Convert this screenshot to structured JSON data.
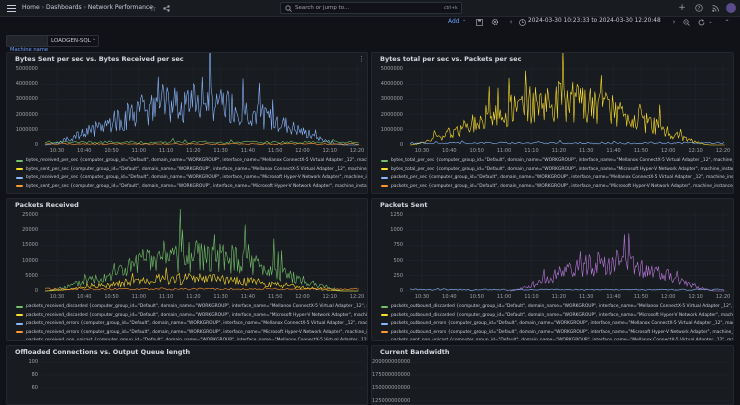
{
  "header": {
    "breadcrumb": [
      "Home",
      "Dashboards",
      "Network Performance"
    ],
    "search_placeholder": "Search or jump to...",
    "search_shortcut": "ctrl+k"
  },
  "toolbar": {
    "add_label": "Add",
    "time_range": "2024-03-30 10:23:33 to 2024-03-30 12:20:48"
  },
  "variables": {
    "label": "Machine name",
    "value": "LOADGEN-SQL"
  },
  "colors": {
    "green": "#73bf69",
    "yellow": "#fade2a",
    "blue": "#8ab8ff",
    "orange": "#ff9830",
    "red": "#f2495c",
    "purple": "#b877d9",
    "background": "#111217",
    "panel": "#181b1f"
  },
  "panels": {
    "p1": {
      "title": "Bytes Sent per sec vs. Bytes Received per sec",
      "yticks": [
        "5000000",
        "4000000",
        "3000000",
        "2000000",
        "1000000",
        "0"
      ],
      "xticks": [
        "10:30",
        "10:40",
        "10:50",
        "11:00",
        "11:10",
        "11:20",
        "11:30",
        "11:40",
        "11:50",
        "12:00",
        "12:10",
        "12:20"
      ],
      "legend": [
        {
          "text": "bytes_received_per_sec {computer_group_id=\"Default\", domain_name=\"WORKGROUP\", interface_name=\"Mellanox ConnectX-5 Virtual Adapter _12\", machine_in",
          "color": "green"
        },
        {
          "text": "bytes_sent_per_sec {computer_group_id=\"Default\", domain_name=\"WORKGROUP\", interface_name=\"Mellanox ConnectX-5 Virtual Adapter _12\", machine_instan",
          "color": "yellow"
        },
        {
          "text": "bytes_received_per_sec {computer_group_id=\"Default\", domain_name=\"WORKGROUP\", interface_name=\"Microsoft Hyper-V Network Adapter\", machine_insta",
          "color": "blue"
        },
        {
          "text": "bytes_sent_per_sec {computer_group_id=\"Default\", domain_name=\"WORKGROUP\", interface_name=\"Microsoft Hyper-V Network Adapter\", machine_instance_",
          "color": "orange"
        }
      ]
    },
    "p2": {
      "title": "Bytes total per sec vs. Packets per sec",
      "yticks": [
        "5000000",
        "4000000",
        "3000000",
        "2000000",
        "1000000",
        "0"
      ],
      "xticks": [
        "10:30",
        "10:40",
        "10:50",
        "11:00",
        "11:10",
        "11:20",
        "11:30",
        "11:40",
        "11:50",
        "12:00",
        "12:10",
        "12:20"
      ],
      "legend": [
        {
          "text": "bytes_total_per_sec {computer_group_id=\"Default\", domain_name=\"WORKGROUP\", interface_name=\"Mellanox ConnectX-5 Virtual Adapter _12\", machine_ins",
          "color": "green"
        },
        {
          "text": "bytes_total_per_sec {computer_group_id=\"Default\", domain_name=\"WORKGROUP\", interface_name=\"Microsoft Hyper-V Network Adapter\", machine_instance",
          "color": "yellow"
        },
        {
          "text": "packets_per_sec {computer_group_id=\"Default\", domain_name=\"WORKGROUP\", interface_name=\"Mellanox ConnectX-5 Virtual Adapter _12\", machine_instanc",
          "color": "blue"
        },
        {
          "text": "packets_per_sec {computer_group_id=\"Default\", domain_name=\"WORKGROUP\", interface_name=\"Microsoft Hyper-V Network Adapter\", machine_instance_",
          "color": "orange"
        }
      ]
    },
    "p3": {
      "title": "Packets Received",
      "yticks": [
        "25000",
        "20000",
        "15000",
        "10000",
        "5000",
        "0"
      ],
      "xticks": [
        "10:30",
        "10:40",
        "10:50",
        "11:00",
        "11:10",
        "11:20",
        "11:30",
        "11:40",
        "11:50",
        "12:00",
        "12:10",
        "12:20"
      ],
      "legend": [
        {
          "text": "packets_received_discarded {computer_group_id=\"Default\", domain_name=\"WORKGROUP\", interface_name=\"Mellanox ConnectX-5 Virtual Adapter _12\", ma",
          "color": "green"
        },
        {
          "text": "packets_received_discarded {computer_group_id=\"Default\", domain_name=\"WORKGROUP\", interface_name=\"Microsoft Hyper-V Network Adapter\", machine_in",
          "color": "yellow"
        },
        {
          "text": "packets_received_errors {computer_group_id=\"Default\", domain_name=\"WORKGROUP\", interface_name=\"Mellanox ConnectX-5 Virtual Adapter _12\", machin",
          "color": "blue"
        },
        {
          "text": "packets_received_errors {computer_group_id=\"Default\", domain_name=\"WORKGROUP\", interface_name=\"Microsoft Hyper-V Network Adapter\", machine_inst",
          "color": "orange"
        },
        {
          "text": "packets_received_non_unicast {computer_group_id=\"Default\", domain_name=\"WORKGROUP\", interface_name=\"Mellanox ConnectX-5 Virtual Adapter _12\", m",
          "color": "red"
        }
      ]
    },
    "p4": {
      "title": "Packets Sent",
      "yticks": [
        "1250",
        "1000",
        "750",
        "500",
        "250",
        "0"
      ],
      "xticks": [
        "10:30",
        "10:40",
        "10:50",
        "11:00",
        "11:10",
        "11:20",
        "11:30",
        "11:40",
        "11:50",
        "12:00",
        "12:10",
        "12:20"
      ],
      "legend": [
        {
          "text": "packets_outbound_discarded {computer_group_id=\"Default\", domain_name=\"WORKGROUP\", interface_name=\"Mellanox ConnectX-5 Virtual Adapter _12\", ma",
          "color": "green"
        },
        {
          "text": "packets_outbound_discarded {computer_group_id=\"Default\", domain_name=\"WORKGROUP\", interface_name=\"Microsoft Hyper-V Network Adapter\", machine_",
          "color": "yellow"
        },
        {
          "text": "packets_outbound_errors {computer_group_id=\"Default\", domain_name=\"WORKGROUP\", interface_name=\"Mellanox ConnectX-5 Virtual Adapter _12\", machine",
          "color": "blue"
        },
        {
          "text": "packets_outbound_errors {computer_group_id=\"Default\", domain_name=\"WORKGROUP\", interface_name=\"Microsoft Hyper-V Network Adapter\", machine_ins",
          "color": "orange"
        },
        {
          "text": "packets_sent_non_unicast {computer_group_id=\"Default\", domain_name=\"WORKGROUP\", interface_name=\"Mellanox ConnectX-5 Virtual Adapter _12\", machine",
          "color": "red"
        }
      ]
    },
    "p5": {
      "title": "Offloaded Connections vs. Output Queue length",
      "yticks": [
        "100",
        "80",
        "60"
      ]
    },
    "p6": {
      "title": "Current Bandwidth",
      "yticks": [
        "200000000000",
        "175000000000",
        "150000000000",
        "125000000000"
      ]
    }
  }
}
